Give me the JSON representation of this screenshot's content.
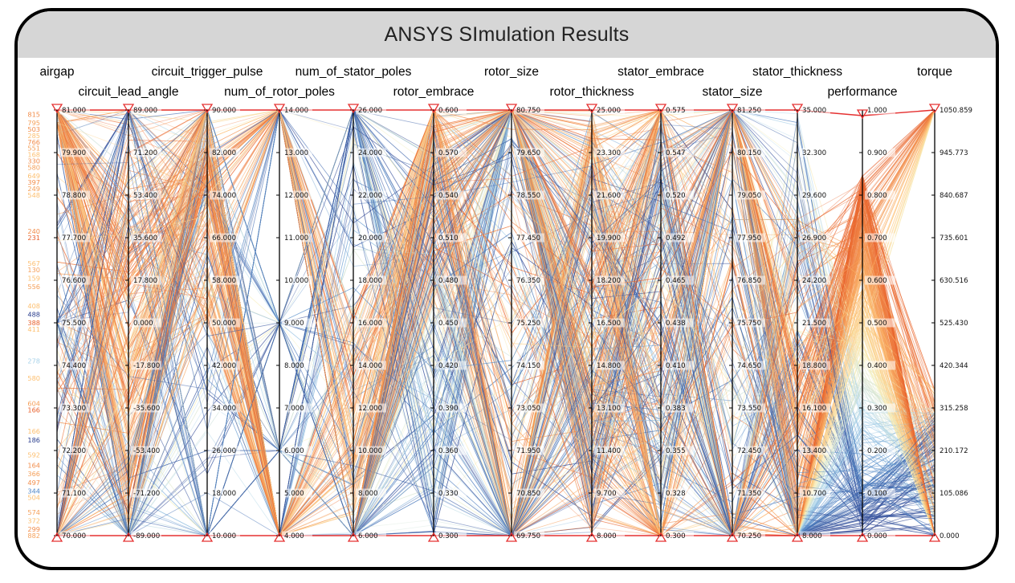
{
  "window": {
    "title": "ANSYS SImulation Results"
  },
  "chart_data": {
    "type": "parallel_coordinates",
    "title": "ANSYS SImulation Results",
    "color_by": "performance",
    "colormap": [
      "#2b3f8e",
      "#4f86c6",
      "#a9d3ea",
      "#f7f1c0",
      "#fdbf6f",
      "#f28d4b",
      "#e8612c"
    ],
    "axes": [
      {
        "name": "airgap",
        "ticks": [
          "70.000",
          "71.100",
          "72.200",
          "73.300",
          "74.400",
          "75.500",
          "76.600",
          "77.700",
          "78.800",
          "79.900",
          "81.000"
        ]
      },
      {
        "name": "circuit_lead_angle",
        "ticks": [
          "-89.000",
          "-71.200",
          "-53.400",
          "-35.600",
          "-17.800",
          "0.000",
          "17.800",
          "35.600",
          "53.400",
          "71.200",
          "89.000"
        ]
      },
      {
        "name": "circuit_trigger_pulse",
        "ticks": [
          "10.000",
          "18.000",
          "26.000",
          "34.000",
          "42.000",
          "50.000",
          "58.000",
          "66.000",
          "74.000",
          "82.000",
          "90.000"
        ]
      },
      {
        "name": "num_of_rotor_poles",
        "ticks": [
          "4.000",
          "5.000",
          "6.000",
          "7.000",
          "8.000",
          "9.000",
          "10.000",
          "11.000",
          "12.000",
          "13.000",
          "14.000"
        ]
      },
      {
        "name": "num_of_stator_poles",
        "ticks": [
          "6.000",
          "8.000",
          "10.000",
          "12.000",
          "14.000",
          "16.000",
          "18.000",
          "20.000",
          "22.000",
          "24.000",
          "26.000"
        ]
      },
      {
        "name": "rotor_embrace",
        "ticks": [
          "0.300",
          "0.330",
          "0.360",
          "0.390",
          "0.420",
          "0.450",
          "0.480",
          "0.510",
          "0.540",
          "0.570",
          "0.600"
        ]
      },
      {
        "name": "rotor_size",
        "ticks": [
          "69.750",
          "70.850",
          "71.950",
          "73.050",
          "74.150",
          "75.250",
          "76.350",
          "77.450",
          "78.550",
          "79.650",
          "80.750"
        ]
      },
      {
        "name": "rotor_thickness",
        "ticks": [
          "8.000",
          "9.700",
          "11.400",
          "13.100",
          "14.800",
          "16.500",
          "18.200",
          "19.900",
          "21.600",
          "23.300",
          "25.000"
        ]
      },
      {
        "name": "stator_embrace",
        "ticks": [
          "0.300",
          "0.328",
          "0.355",
          "0.383",
          "0.410",
          "0.438",
          "0.465",
          "0.492",
          "0.520",
          "0.547",
          "0.575"
        ]
      },
      {
        "name": "stator_size",
        "ticks": [
          "70.250",
          "71.350",
          "72.450",
          "73.550",
          "74.650",
          "75.750",
          "76.850",
          "77.950",
          "79.050",
          "80.150",
          "81.250"
        ]
      },
      {
        "name": "stator_thickness",
        "ticks": [
          "8.000",
          "10.700",
          "13.400",
          "16.100",
          "18.800",
          "21.500",
          "24.200",
          "26.900",
          "29.600",
          "32.300",
          "35.000"
        ]
      },
      {
        "name": "performance",
        "ticks": [
          "0.000",
          "0.100",
          "0.200",
          "0.300",
          "0.400",
          "0.500",
          "0.600",
          "0.700",
          "0.800",
          "0.900",
          "1.000"
        ]
      },
      {
        "name": "torque",
        "ticks": [
          "0.000",
          "105.086",
          "210.172",
          "315.258",
          "420.344",
          "525.430",
          "630.516",
          "735.601",
          "840.687",
          "945.773",
          "1050.859"
        ]
      }
    ],
    "left_side_labels": [
      {
        "text": "815",
        "v": 0.99,
        "color": "#f28d4b"
      },
      {
        "text": "795",
        "v": 0.97,
        "color": "#f5a05a"
      },
      {
        "text": "503",
        "v": 0.955,
        "color": "#f28d4b"
      },
      {
        "text": "285",
        "v": 0.94,
        "color": "#fdbf6f"
      },
      {
        "text": "766",
        "v": 0.925,
        "color": "#f28d4b"
      },
      {
        "text": "551",
        "v": 0.91,
        "color": "#f5a05a"
      },
      {
        "text": "168",
        "v": 0.895,
        "color": "#fdbf6f"
      },
      {
        "text": "330",
        "v": 0.88,
        "color": "#f28d4b"
      },
      {
        "text": "580",
        "v": 0.865,
        "color": "#f5a05a"
      },
      {
        "text": "649",
        "v": 0.845,
        "color": "#fdbf6f"
      },
      {
        "text": "397",
        "v": 0.83,
        "color": "#f28d4b"
      },
      {
        "text": "249",
        "v": 0.815,
        "color": "#f5a05a"
      },
      {
        "text": "548",
        "v": 0.8,
        "color": "#fdbf6f"
      },
      {
        "text": "240",
        "v": 0.715,
        "color": "#f28d4b"
      },
      {
        "text": "231",
        "v": 0.7,
        "color": "#e8612c"
      },
      {
        "text": "567",
        "v": 0.64,
        "color": "#fdbf6f"
      },
      {
        "text": "130",
        "v": 0.625,
        "color": "#f5a05a"
      },
      {
        "text": "159",
        "v": 0.605,
        "color": "#fdbf6f"
      },
      {
        "text": "556",
        "v": 0.585,
        "color": "#f5a05a"
      },
      {
        "text": "408",
        "v": 0.54,
        "color": "#fdbf6f"
      },
      {
        "text": "488",
        "v": 0.52,
        "color": "#2b3f8e"
      },
      {
        "text": "388",
        "v": 0.5,
        "color": "#e8612c"
      },
      {
        "text": "411",
        "v": 0.485,
        "color": "#fdbf6f"
      },
      {
        "text": "278",
        "v": 0.41,
        "color": "#a9d3ea"
      },
      {
        "text": "580",
        "v": 0.37,
        "color": "#fdbf6f"
      },
      {
        "text": "604",
        "v": 0.31,
        "color": "#f5a05a"
      },
      {
        "text": "166",
        "v": 0.295,
        "color": "#e8612c"
      },
      {
        "text": "166",
        "v": 0.245,
        "color": "#fdbf6f"
      },
      {
        "text": "186",
        "v": 0.225,
        "color": "#2b3f8e"
      },
      {
        "text": "592",
        "v": 0.19,
        "color": "#fdbf6f"
      },
      {
        "text": "164",
        "v": 0.165,
        "color": "#f28d4b"
      },
      {
        "text": "366",
        "v": 0.145,
        "color": "#f5a05a"
      },
      {
        "text": "497",
        "v": 0.125,
        "color": "#f28d4b"
      },
      {
        "text": "344",
        "v": 0.105,
        "color": "#4f86c6"
      },
      {
        "text": "504",
        "v": 0.09,
        "color": "#fdbf6f"
      },
      {
        "text": "574",
        "v": 0.055,
        "color": "#f5a05a"
      },
      {
        "text": "372",
        "v": 0.035,
        "color": "#fdbf6f"
      },
      {
        "text": "299",
        "v": 0.015,
        "color": "#f28d4b"
      },
      {
        "text": "882",
        "v": 0.0,
        "color": "#f5a05a"
      }
    ]
  }
}
